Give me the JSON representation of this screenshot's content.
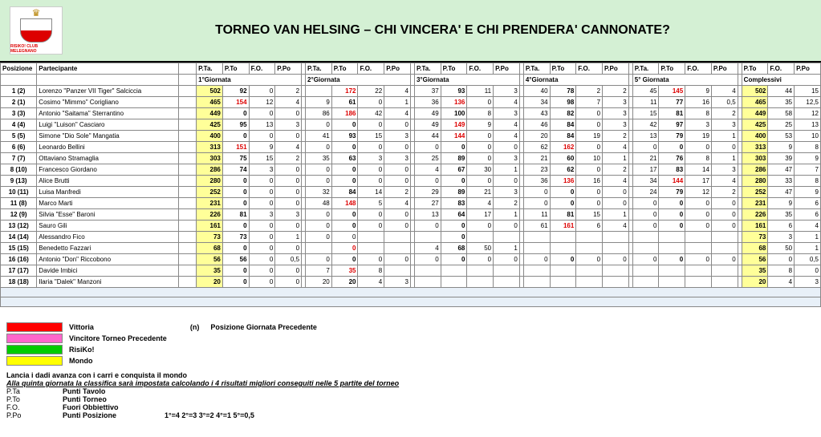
{
  "header": {
    "title": "TORNEO VAN HELSING – CHI VINCERA' E CHI PRENDERA' CANNONATE?",
    "logo_text": "RISIKO! CLUB MELEGNANO"
  },
  "columns": {
    "pos": "Posizione",
    "name": "Partecipante",
    "pta": "P.Ta.",
    "pto": "P.To",
    "fo": "F.O.",
    "ppo": "P.Po"
  },
  "groups": [
    "1°Giornata",
    "2°Giornata",
    "3°Giornata",
    "4°Giornata",
    "5° Giornata",
    "Complessivi"
  ],
  "rows": [
    {
      "pos": "1 (2)",
      "name": "Lorenzo \"Panzer VII Tiger\" Salciccia",
      "g": [
        {
          "pta": "502",
          "pto": "92",
          "fo": "0",
          "ppo": "2",
          "pta_y": true,
          "pto_b": true,
          "pta_b": true
        },
        {
          "pta": "",
          "pto": "172",
          "fo": "22",
          "ppo": "4",
          "pto_r": true
        },
        {
          "pta": "37",
          "pto": "93",
          "fo": "11",
          "ppo": "3",
          "pto_b": true
        },
        {
          "pta": "40",
          "pto": "78",
          "fo": "2",
          "ppo": "2",
          "pto_b": true
        },
        {
          "pta": "45",
          "pto": "145",
          "fo": "9",
          "ppo": "4",
          "pto_r": true
        }
      ],
      "tot": {
        "pto": "502",
        "fo": "44",
        "ppo": "15",
        "pto_y": true,
        "pto_b": true
      }
    },
    {
      "pos": "2 (1)",
      "name": "Cosimo \"Mimmo\" Corigliano",
      "g": [
        {
          "pta": "465",
          "pto": "154",
          "fo": "12",
          "ppo": "4",
          "pta_y": true,
          "pta_b": true,
          "pto_r": true
        },
        {
          "pta": "9",
          "pto": "61",
          "fo": "0",
          "ppo": "1",
          "pto_b": true
        },
        {
          "pta": "36",
          "pto": "136",
          "fo": "0",
          "ppo": "4",
          "pto_r": true
        },
        {
          "pta": "34",
          "pto": "98",
          "fo": "7",
          "ppo": "3",
          "pto_b": true
        },
        {
          "pta": "11",
          "pto": "77",
          "fo": "16",
          "ppo": "0,5",
          "pto_b": true
        }
      ],
      "tot": {
        "pto": "465",
        "fo": "35",
        "ppo": "12,5",
        "pto_y": true,
        "pto_b": true
      }
    },
    {
      "pos": "3 (3)",
      "name": "Antonio \"Saitama\" Sterrantino",
      "g": [
        {
          "pta": "449",
          "pto": "0",
          "fo": "0",
          "ppo": "0",
          "pta_y": true,
          "pta_b": true,
          "pto_b": true
        },
        {
          "pta": "86",
          "pto": "186",
          "fo": "42",
          "ppo": "4",
          "pto_r": true
        },
        {
          "pta": "49",
          "pto": "100",
          "fo": "8",
          "ppo": "3",
          "pto_b": true
        },
        {
          "pta": "43",
          "pto": "82",
          "fo": "0",
          "ppo": "3",
          "pto_b": true
        },
        {
          "pta": "15",
          "pto": "81",
          "fo": "8",
          "ppo": "2",
          "pto_b": true
        }
      ],
      "tot": {
        "pto": "449",
        "fo": "58",
        "ppo": "12",
        "pto_y": true,
        "pto_b": true
      }
    },
    {
      "pos": "4 (4)",
      "name": "Luigi \"Luison\" Casciaro",
      "g": [
        {
          "pta": "425",
          "pto": "95",
          "fo": "13",
          "ppo": "3",
          "pta_y": true,
          "pta_b": true,
          "pto_b": true
        },
        {
          "pta": "0",
          "pto": "0",
          "fo": "0",
          "ppo": "0",
          "pto_b": true
        },
        {
          "pta": "49",
          "pto": "149",
          "fo": "9",
          "ppo": "4",
          "pto_r": true
        },
        {
          "pta": "46",
          "pto": "84",
          "fo": "0",
          "ppo": "3",
          "pto_b": true
        },
        {
          "pta": "42",
          "pto": "97",
          "fo": "3",
          "ppo": "3",
          "pto_b": true
        }
      ],
      "tot": {
        "pto": "425",
        "fo": "25",
        "ppo": "13",
        "pto_y": true,
        "pto_b": true
      }
    },
    {
      "pos": "5 (5)",
      "name": "Simone \"Dio Sole\" Mangatia",
      "g": [
        {
          "pta": "400",
          "pto": "0",
          "fo": "0",
          "ppo": "0",
          "pta_y": true,
          "pta_b": true,
          "pto_b": true
        },
        {
          "pta": "41",
          "pto": "93",
          "fo": "15",
          "ppo": "3",
          "pto_b": true
        },
        {
          "pta": "44",
          "pto": "144",
          "fo": "0",
          "ppo": "4",
          "pto_r": true
        },
        {
          "pta": "20",
          "pto": "84",
          "fo": "19",
          "ppo": "2",
          "pto_b": true
        },
        {
          "pta": "13",
          "pto": "79",
          "fo": "19",
          "ppo": "1",
          "pto_b": true
        }
      ],
      "tot": {
        "pto": "400",
        "fo": "53",
        "ppo": "10",
        "pto_y": true,
        "pto_b": true
      }
    },
    {
      "pos": "6 (6)",
      "name": "Leonardo Bellini",
      "g": [
        {
          "pta": "313",
          "pto": "151",
          "fo": "9",
          "ppo": "4",
          "pta_y": true,
          "pta_b": true,
          "pto_r": true
        },
        {
          "pta": "0",
          "pto": "0",
          "fo": "0",
          "ppo": "0",
          "pto_b": true
        },
        {
          "pta": "0",
          "pto": "0",
          "fo": "0",
          "ppo": "0",
          "pto_b": true
        },
        {
          "pta": "62",
          "pto": "162",
          "fo": "0",
          "ppo": "4",
          "pto_r": true
        },
        {
          "pta": "0",
          "pto": "0",
          "fo": "0",
          "ppo": "0",
          "pto_b": true
        }
      ],
      "tot": {
        "pto": "313",
        "fo": "9",
        "ppo": "8",
        "pto_y": true,
        "pto_b": true
      }
    },
    {
      "pos": "7 (7)",
      "name": "Ottaviano Stramaglia",
      "g": [
        {
          "pta": "303",
          "pto": "75",
          "fo": "15",
          "ppo": "2",
          "pta_y": true,
          "pta_b": true,
          "pto_b": true
        },
        {
          "pta": "35",
          "pto": "63",
          "fo": "3",
          "ppo": "3",
          "pto_b": true
        },
        {
          "pta": "25",
          "pto": "89",
          "fo": "0",
          "ppo": "3",
          "pto_b": true
        },
        {
          "pta": "21",
          "pto": "60",
          "fo": "10",
          "ppo": "1",
          "pto_b": true
        },
        {
          "pta": "21",
          "pto": "76",
          "fo": "8",
          "ppo": "1",
          "pto_b": true
        }
      ],
      "tot": {
        "pto": "303",
        "fo": "39",
        "ppo": "9",
        "pto_y": true,
        "pto_b": true
      }
    },
    {
      "pos": "8 (10)",
      "name": "Francesco Giordano",
      "g": [
        {
          "pta": "286",
          "pto": "74",
          "fo": "3",
          "ppo": "0",
          "pta_y": true,
          "pta_b": true,
          "pto_b": true
        },
        {
          "pta": "0",
          "pto": "0",
          "fo": "0",
          "ppo": "0",
          "pto_b": true
        },
        {
          "pta": "4",
          "pto": "67",
          "fo": "30",
          "ppo": "1",
          "pto_b": true
        },
        {
          "pta": "23",
          "pto": "62",
          "fo": "0",
          "ppo": "2",
          "pto_b": true
        },
        {
          "pta": "17",
          "pto": "83",
          "fo": "14",
          "ppo": "3",
          "pto_b": true
        }
      ],
      "tot": {
        "pto": "286",
        "fo": "47",
        "ppo": "7",
        "pto_y": true,
        "pto_b": true
      }
    },
    {
      "pos": "9 (13)",
      "name": "Alice Brutti",
      "g": [
        {
          "pta": "280",
          "pto": "0",
          "fo": "0",
          "ppo": "0",
          "pta_y": true,
          "pta_b": true,
          "pto_b": true
        },
        {
          "pta": "0",
          "pto": "0",
          "fo": "0",
          "ppo": "0",
          "pto_b": true
        },
        {
          "pta": "0",
          "pto": "0",
          "fo": "0",
          "ppo": "0",
          "pto_b": true
        },
        {
          "pta": "36",
          "pto": "136",
          "fo": "16",
          "ppo": "4",
          "pto_r": true
        },
        {
          "pta": "34",
          "pto": "144",
          "fo": "17",
          "ppo": "4",
          "pto_r": true
        }
      ],
      "tot": {
        "pto": "280",
        "fo": "33",
        "ppo": "8",
        "pto_y": true,
        "pto_b": true
      }
    },
    {
      "pos": "10 (11)",
      "name": "Luisa Manfredi",
      "g": [
        {
          "pta": "252",
          "pto": "0",
          "fo": "0",
          "ppo": "0",
          "pta_y": true,
          "pta_b": true,
          "pto_b": true
        },
        {
          "pta": "32",
          "pto": "84",
          "fo": "14",
          "ppo": "2",
          "pto_b": true
        },
        {
          "pta": "29",
          "pto": "89",
          "fo": "21",
          "ppo": "3",
          "pto_b": true
        },
        {
          "pta": "0",
          "pto": "0",
          "fo": "0",
          "ppo": "0",
          "pto_b": true
        },
        {
          "pta": "24",
          "pto": "79",
          "fo": "12",
          "ppo": "2",
          "pto_b": true
        }
      ],
      "tot": {
        "pto": "252",
        "fo": "47",
        "ppo": "9",
        "pto_y": true,
        "pto_b": true
      }
    },
    {
      "pos": "11 (8)",
      "name": "Marco Marti",
      "g": [
        {
          "pta": "231",
          "pto": "0",
          "fo": "0",
          "ppo": "0",
          "pta_y": true,
          "pta_b": true,
          "pto_b": true
        },
        {
          "pta": "48",
          "pto": "148",
          "fo": "5",
          "ppo": "4",
          "pto_r": true
        },
        {
          "pta": "27",
          "pto": "83",
          "fo": "4",
          "ppo": "2",
          "pto_b": true
        },
        {
          "pta": "0",
          "pto": "0",
          "fo": "0",
          "ppo": "0",
          "pto_b": true
        },
        {
          "pta": "0",
          "pto": "0",
          "fo": "0",
          "ppo": "0",
          "pto_b": true
        }
      ],
      "tot": {
        "pto": "231",
        "fo": "9",
        "ppo": "6",
        "pto_y": true,
        "pto_b": true
      }
    },
    {
      "pos": "12 (9)",
      "name": "Silvia \"Esse\" Baroni",
      "g": [
        {
          "pta": "226",
          "pto": "81",
          "fo": "3",
          "ppo": "3",
          "pta_y": true,
          "pta_b": true,
          "pto_b": true
        },
        {
          "pta": "0",
          "pto": "0",
          "fo": "0",
          "ppo": "0",
          "pto_b": true
        },
        {
          "pta": "13",
          "pto": "64",
          "fo": "17",
          "ppo": "1",
          "pto_b": true
        },
        {
          "pta": "11",
          "pto": "81",
          "fo": "15",
          "ppo": "1",
          "pto_b": true
        },
        {
          "pta": "0",
          "pto": "0",
          "fo": "0",
          "ppo": "0",
          "pto_b": true
        }
      ],
      "tot": {
        "pto": "226",
        "fo": "35",
        "ppo": "6",
        "pto_y": true,
        "pto_b": true
      }
    },
    {
      "pos": "13 (12)",
      "name": "Sauro Gili",
      "g": [
        {
          "pta": "161",
          "pto": "0",
          "fo": "0",
          "ppo": "0",
          "pta_y": true,
          "pta_b": true,
          "pto_b": true
        },
        {
          "pta": "0",
          "pto": "0",
          "fo": "0",
          "ppo": "0",
          "pto_b": true
        },
        {
          "pta": "0",
          "pto": "0",
          "fo": "0",
          "ppo": "0",
          "pto_b": true
        },
        {
          "pta": "61",
          "pto": "161",
          "fo": "6",
          "ppo": "4",
          "pto_r": true
        },
        {
          "pta": "0",
          "pto": "0",
          "fo": "0",
          "ppo": "0",
          "pto_b": true
        }
      ],
      "tot": {
        "pto": "161",
        "fo": "6",
        "ppo": "4",
        "pto_y": true,
        "pto_b": true
      }
    },
    {
      "pos": "14 (14)",
      "name": "Alessandro Fico",
      "g": [
        {
          "pta": "73",
          "pto": "73",
          "fo": "0",
          "ppo": "1",
          "pta_y": true,
          "pta_b": true,
          "pto_b": true
        },
        {
          "pta": "0",
          "pto": "0",
          "fo": "",
          "ppo": ""
        },
        {
          "pta": "",
          "pto": "0",
          "fo": "",
          "ppo": "",
          "pto_b": true
        },
        {
          "pta": "",
          "pto": "",
          "fo": "",
          "ppo": ""
        },
        {
          "pta": "",
          "pto": "",
          "fo": "",
          "ppo": ""
        }
      ],
      "tot": {
        "pto": "73",
        "fo": "3",
        "ppo": "1",
        "pto_y": true,
        "pto_b": true
      }
    },
    {
      "pos": "15 (15)",
      "name": "Benedetto Fazzari",
      "g": [
        {
          "pta": "68",
          "pto": "0",
          "fo": "0",
          "ppo": "0",
          "pta_y": true,
          "pta_b": true,
          "pto_b": true
        },
        {
          "pta": "",
          "pto": "0",
          "fo": "",
          "ppo": "",
          "pto_r": true
        },
        {
          "pta": "4",
          "pto": "68",
          "fo": "50",
          "ppo": "1",
          "pto_b": true
        },
        {
          "pta": "",
          "pto": "",
          "fo": "",
          "ppo": ""
        },
        {
          "pta": "",
          "pto": "",
          "fo": "",
          "ppo": ""
        }
      ],
      "tot": {
        "pto": "68",
        "fo": "50",
        "ppo": "1",
        "pto_y": true,
        "pto_b": true
      }
    },
    {
      "pos": "16 (16)",
      "name": "Antonio \"Don\" Riccobono",
      "g": [
        {
          "pta": "56",
          "pto": "56",
          "fo": "0",
          "ppo": "0,5",
          "pta_y": true,
          "pta_b": true,
          "pto_b": true
        },
        {
          "pta": "0",
          "pto": "0",
          "fo": "0",
          "ppo": "0",
          "pto_b": true
        },
        {
          "pta": "0",
          "pto": "0",
          "fo": "0",
          "ppo": "0",
          "pto_b": true
        },
        {
          "pta": "0",
          "pto": "0",
          "fo": "0",
          "ppo": "0",
          "pto_b": true
        },
        {
          "pta": "0",
          "pto": "0",
          "fo": "0",
          "ppo": "0",
          "pto_b": true
        }
      ],
      "tot": {
        "pto": "56",
        "fo": "0",
        "ppo": "0,5",
        "pto_y": true,
        "pto_b": true
      }
    },
    {
      "pos": "17 (17)",
      "name": "Davide Imbici",
      "g": [
        {
          "pta": "35",
          "pto": "0",
          "fo": "0",
          "ppo": "0",
          "pta_y": true,
          "pta_b": true,
          "pto_b": true
        },
        {
          "pta": "7",
          "pto": "35",
          "fo": "8",
          "ppo": "",
          "pto_r": true
        },
        {
          "pta": "",
          "pto": "",
          "fo": "",
          "ppo": ""
        },
        {
          "pta": "",
          "pto": "",
          "fo": "",
          "ppo": ""
        },
        {
          "pta": "",
          "pto": "",
          "fo": "",
          "ppo": ""
        }
      ],
      "tot": {
        "pto": "35",
        "fo": "8",
        "ppo": "0",
        "pto_y": true,
        "pto_b": true
      }
    },
    {
      "pos": "18 (18)",
      "name": "Ilaria \"Dalek\" Manzoni",
      "g": [
        {
          "pta": "20",
          "pto": "0",
          "fo": "0",
          "ppo": "0",
          "pta_y": true,
          "pta_b": true,
          "pto_b": true
        },
        {
          "pta": "20",
          "pto": "20",
          "fo": "4",
          "ppo": "3",
          "pto_b": true
        },
        {
          "pta": "",
          "pto": "",
          "fo": "",
          "ppo": ""
        },
        {
          "pta": "",
          "pto": "",
          "fo": "",
          "ppo": ""
        },
        {
          "pta": "",
          "pto": "",
          "fo": "",
          "ppo": ""
        }
      ],
      "tot": {
        "pto": "20",
        "fo": "4",
        "ppo": "3",
        "pto_y": true,
        "pto_b": true
      }
    }
  ],
  "legend": {
    "items": [
      {
        "color": "#ff0000",
        "label": "Vittoria"
      },
      {
        "color": "#ff66cc",
        "label": "Vincitore Torneo Precedente"
      },
      {
        "color": "#00cc00",
        "label": "RisiKo!"
      },
      {
        "color": "#ffff00",
        "label": "Mondo"
      }
    ],
    "note_key": "(n)",
    "note_label": "Posizione Giornata Precedente"
  },
  "footer": {
    "line1": "Lancia i dadi avanza con i carri e conquista il mondo",
    "line2": "Alla quinta  giornata la classifica sarà impostata calcolando i 4 risultati migliori conseguiti nelle 5 partite del torneo",
    "abbrs": [
      {
        "k": "P.Ta",
        "v": "Punti Tavolo"
      },
      {
        "k": "P.To",
        "v": "Punti Torneo"
      },
      {
        "k": "F.O.",
        "v": "Fuori Obbiettivo"
      },
      {
        "k": "P.Po",
        "v": "Punti Posizione",
        "extra": "1°=4    2°=3    3°=2    4°=1    5°=0,5"
      }
    ]
  }
}
